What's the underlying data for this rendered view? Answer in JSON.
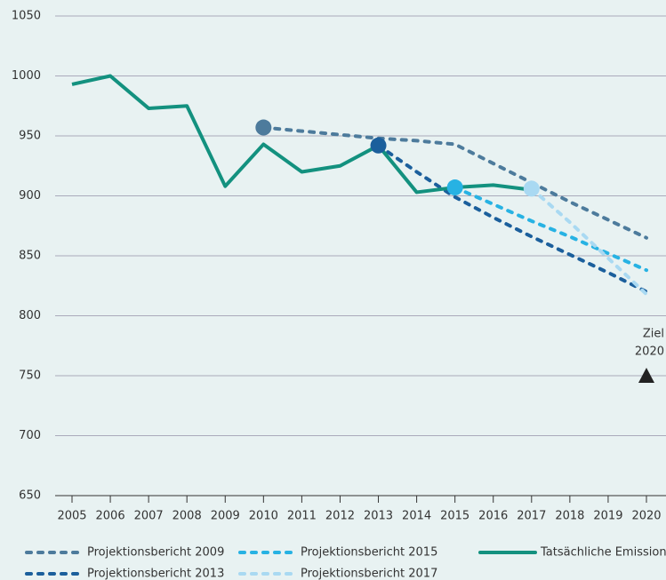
{
  "chart_data": {
    "type": "line",
    "x": [
      2005,
      2006,
      2007,
      2008,
      2009,
      2010,
      2011,
      2012,
      2013,
      2014,
      2015,
      2016,
      2017,
      2018,
      2019,
      2020
    ],
    "series": [
      {
        "name": "Projektionsbericht 2009",
        "color": "#4d7b9c",
        "dashed": true,
        "start_marker": true,
        "values": [
          null,
          null,
          null,
          null,
          null,
          957,
          954,
          951,
          948,
          946,
          943,
          927,
          911,
          895,
          880,
          865
        ]
      },
      {
        "name": "Projektionsbericht 2015",
        "color": "#27b2e3",
        "dashed": true,
        "start_marker": true,
        "values": [
          null,
          null,
          null,
          null,
          null,
          null,
          null,
          null,
          null,
          null,
          907,
          893,
          879,
          866,
          852,
          838
        ]
      },
      {
        "name": "Tatsächliche Emissionen",
        "color": "#13917f",
        "dashed": false,
        "start_marker": false,
        "values": [
          993,
          1000,
          973,
          975,
          908,
          943,
          920,
          925,
          942,
          903,
          907,
          909,
          905,
          null,
          null,
          null
        ]
      },
      {
        "name": "Projektionsbericht 2013",
        "color": "#1b5f9c",
        "dashed": true,
        "start_marker": true,
        "values": [
          null,
          null,
          null,
          null,
          null,
          null,
          null,
          null,
          942,
          920,
          899,
          882,
          866,
          851,
          836,
          820
        ]
      },
      {
        "name": "Projektionsbericht 2017",
        "color": "#a9d9f2",
        "dashed": true,
        "start_marker": true,
        "values": [
          null,
          null,
          null,
          null,
          null,
          null,
          null,
          null,
          null,
          null,
          null,
          null,
          906,
          878,
          848,
          818
        ]
      }
    ],
    "annotations": [
      {
        "lines": [
          "Ziel",
          "2020"
        ],
        "x": 2020,
        "value": 750,
        "color": "#222222"
      }
    ],
    "xlim": [
      2005,
      2020
    ],
    "ylim": [
      650,
      1050
    ],
    "yticks": [
      650,
      700,
      750,
      800,
      850,
      900,
      950,
      1000,
      1050
    ],
    "grid": true
  }
}
